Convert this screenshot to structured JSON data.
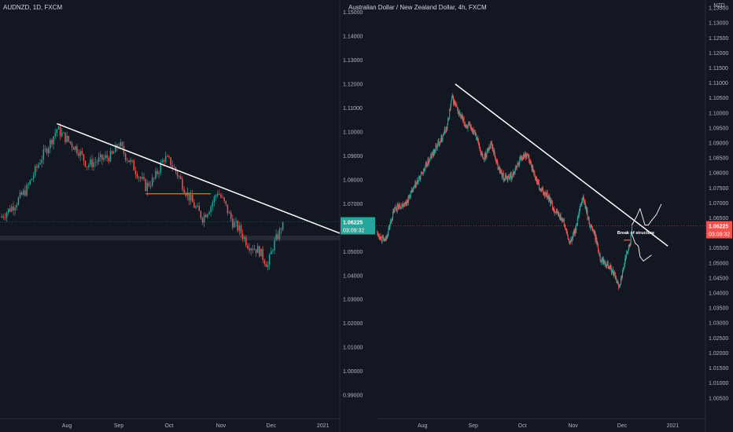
{
  "colors": {
    "bg": "#131722",
    "up": "#26a69a",
    "down": "#ef5350",
    "text": "#b2b5be",
    "grid": "#1e222d",
    "trend": "#ffffff",
    "priceLine": "#26a69a",
    "priceLine2": "#ef5350",
    "hline": "#f05a3c"
  },
  "left": {
    "title": "AUDNZD, 1D, FXCM",
    "currency": "",
    "price": {
      "value": 1.06225,
      "label": "1.06225",
      "countdown": "03:09:32"
    },
    "support": {
      "lo": 1.0545,
      "hi": 1.0565
    },
    "hline": {
      "from": "2020-09-17",
      "to": "2020-10-26",
      "y": 1.074
    },
    "annotation": "",
    "drawn_paths": []
  },
  "right": {
    "title": "Australian Dollar / New Zealand Dollar, 4h, FXCM",
    "currency": "NZD",
    "price": {
      "value": 1.06225,
      "label": "1.06225",
      "countdown": "03:09:32"
    },
    "hline": {
      "from": "2020-12-02",
      "to": "2020-12-06",
      "y": 1.0575
    },
    "annotation": "Break of structure",
    "annotation_at": {
      "date": "2020-11-28",
      "y": 1.0595
    },
    "drawn_paths": [
      [
        [
          "2020-12-07",
          1.0625
        ],
        [
          "2020-12-10",
          1.0655
        ],
        [
          "2020-12-12",
          1.068
        ],
        [
          "2020-12-15",
          1.0625
        ],
        [
          "2020-12-17",
          1.0625
        ],
        [
          "2020-12-19",
          1.064
        ],
        [
          "2020-12-22",
          1.066
        ],
        [
          "2020-12-25",
          1.0695
        ]
      ],
      [
        [
          "2020-12-07",
          1.0595
        ],
        [
          "2020-12-09",
          1.0565
        ],
        [
          "2020-12-11",
          1.0555
        ],
        [
          "2020-12-12",
          1.052
        ],
        [
          "2020-12-14",
          1.0505
        ],
        [
          "2020-12-19",
          1.0525
        ]
      ]
    ]
  },
  "chart_data": [
    {
      "type": "candlestick",
      "title": "AUDNZD, 1D, FXCM",
      "x_ticks": [
        "Aug",
        "Sep",
        "Oct",
        "Nov",
        "Dec",
        "2021"
      ],
      "x_tick_dates": [
        "2020-08-01",
        "2020-09-01",
        "2020-10-01",
        "2020-11-01",
        "2020-12-01",
        "2021-01-01"
      ],
      "xlim": [
        "2020-06-22",
        "2021-01-11"
      ],
      "y_ticks": [
        "1.15000",
        "1.14000",
        "1.13000",
        "1.12000",
        "1.11000",
        "1.10000",
        "1.09000",
        "1.08000",
        "1.07000",
        "1.06000",
        "1.05000",
        "1.04000",
        "1.03000",
        "1.02000",
        "1.01000",
        "1.00000",
        "0.99000",
        "0.98000"
      ],
      "ylim": [
        0.98,
        1.155
      ],
      "trendline": [
        [
          "2020-07-26",
          1.1033
        ],
        [
          "2021-01-11",
          1.0575
        ]
      ],
      "anchors": [
        [
          "2020-06-22",
          1.064
        ],
        [
          "2020-06-30",
          1.069
        ],
        [
          "2020-07-08",
          1.076
        ],
        [
          "2020-07-16",
          1.088
        ],
        [
          "2020-07-22",
          1.0955
        ],
        [
          "2020-07-26",
          1.101
        ],
        [
          "2020-08-02",
          1.096
        ],
        [
          "2020-08-08",
          1.092
        ],
        [
          "2020-08-13",
          1.086
        ],
        [
          "2020-08-20",
          1.088
        ],
        [
          "2020-08-28",
          1.09
        ],
        [
          "2020-09-01",
          1.095
        ],
        [
          "2020-09-05",
          1.09
        ],
        [
          "2020-09-10",
          1.085
        ],
        [
          "2020-09-17",
          1.077
        ],
        [
          "2020-09-22",
          1.08
        ],
        [
          "2020-09-28",
          1.089
        ],
        [
          "2020-10-02",
          1.087
        ],
        [
          "2020-10-07",
          1.081
        ],
        [
          "2020-10-11",
          1.075
        ],
        [
          "2020-10-16",
          1.069
        ],
        [
          "2020-10-21",
          1.064
        ],
        [
          "2020-10-26",
          1.069
        ],
        [
          "2020-10-30",
          1.075
        ],
        [
          "2020-11-03",
          1.07
        ],
        [
          "2020-11-08",
          1.062
        ],
        [
          "2020-11-12",
          1.059
        ],
        [
          "2020-11-17",
          1.053
        ],
        [
          "2020-11-24",
          1.05
        ],
        [
          "2020-11-29",
          1.044
        ],
        [
          "2020-12-02",
          1.052
        ],
        [
          "2020-12-06",
          1.058
        ],
        [
          "2020-12-08",
          1.0622
        ]
      ]
    },
    {
      "type": "candlestick",
      "title": "Australian Dollar / New Zealand Dollar, 4h, FXCM",
      "x_ticks": [
        "Aug",
        "Sep",
        "Oct",
        "Nov",
        "Dec",
        "2021"
      ],
      "x_tick_dates": [
        "2020-08-01",
        "2020-09-01",
        "2020-10-01",
        "2020-11-01",
        "2020-12-01",
        "2021-01-01"
      ],
      "xlim": [
        "2020-07-04",
        "2021-01-21"
      ],
      "y_ticks": [
        "1.13500",
        "1.13000",
        "1.12500",
        "1.12000",
        "1.11500",
        "1.11000",
        "1.10500",
        "1.10000",
        "1.09500",
        "1.09000",
        "1.08500",
        "1.08000",
        "1.07500",
        "1.07000",
        "1.06500",
        "1.06000",
        "1.05500",
        "1.05000",
        "1.04500",
        "1.04000",
        "1.03500",
        "1.03000",
        "1.02500",
        "1.02000",
        "1.01500",
        "1.01000",
        "1.00500"
      ],
      "ylim": [
        0.998,
        1.1375
      ],
      "trendline": [
        [
          "2020-08-21",
          1.1095
        ],
        [
          "2020-12-29",
          1.0555
        ]
      ],
      "anchors": [
        [
          "2020-07-04",
          1.06
        ],
        [
          "2020-07-09",
          1.057
        ],
        [
          "2020-07-15",
          1.068
        ],
        [
          "2020-07-22",
          1.07
        ],
        [
          "2020-07-28",
          1.076
        ],
        [
          "2020-08-04",
          1.083
        ],
        [
          "2020-08-11",
          1.09
        ],
        [
          "2020-08-16",
          1.095
        ],
        [
          "2020-08-19",
          1.105
        ],
        [
          "2020-08-23",
          1.1
        ],
        [
          "2020-08-27",
          1.096
        ],
        [
          "2020-09-02",
          1.094
        ],
        [
          "2020-09-07",
          1.084
        ],
        [
          "2020-09-12",
          1.09
        ],
        [
          "2020-09-16",
          1.082
        ],
        [
          "2020-09-20",
          1.078
        ],
        [
          "2020-09-25",
          1.079
        ],
        [
          "2020-09-30",
          1.085
        ],
        [
          "2020-10-04",
          1.086
        ],
        [
          "2020-10-08",
          1.08
        ],
        [
          "2020-10-12",
          1.074
        ],
        [
          "2020-10-16",
          1.073
        ],
        [
          "2020-10-20",
          1.068
        ],
        [
          "2020-10-26",
          1.064
        ],
        [
          "2020-10-30",
          1.056
        ],
        [
          "2020-11-03",
          1.062
        ],
        [
          "2020-11-07",
          1.072
        ],
        [
          "2020-11-11",
          1.063
        ],
        [
          "2020-11-14",
          1.06
        ],
        [
          "2020-11-18",
          1.051
        ],
        [
          "2020-11-22",
          1.05
        ],
        [
          "2020-11-26",
          1.046
        ],
        [
          "2020-11-29",
          1.042
        ],
        [
          "2020-12-02",
          1.048
        ],
        [
          "2020-12-04",
          1.054
        ],
        [
          "2020-12-06",
          1.056
        ],
        [
          "2020-12-07",
          1.0622
        ]
      ]
    }
  ]
}
